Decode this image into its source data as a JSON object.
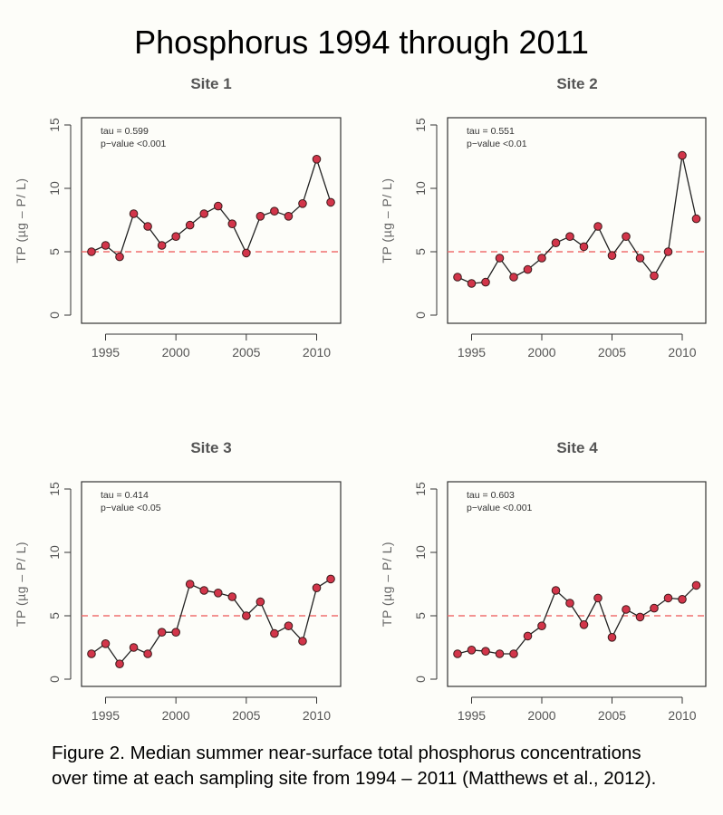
{
  "figure": {
    "title": "Phosphorus 1994 through 2011",
    "caption_line1": "Figure 2. Median summer near-surface total phosphorus concentrations",
    "caption_line2": "over time at each sampling site from 1994 – 2011 (Matthews et al., 2012)."
  },
  "colors": {
    "point_fill": "#d2354a",
    "point_stroke": "#3a1a1a",
    "line": "#222222",
    "reference_line": "#f07070",
    "axis": "#333333"
  },
  "chart_data": [
    {
      "type": "line",
      "title": "Site 1",
      "xlabel": "",
      "ylabel": "TP (µg – P/ L)",
      "xlim": [
        1994,
        2011
      ],
      "ylim": [
        0,
        15
      ],
      "xticks": [
        1995,
        2000,
        2005,
        2010
      ],
      "yticks": [
        0,
        5,
        10,
        15
      ],
      "reference_line": 5,
      "annotation": [
        "tau =  0.599",
        "p−value <0.001"
      ],
      "x": [
        1994,
        1995,
        1996,
        1997,
        1998,
        1999,
        2000,
        2001,
        2002,
        2003,
        2004,
        2005,
        2006,
        2007,
        2008,
        2009,
        2010,
        2011
      ],
      "values": [
        5.0,
        5.5,
        4.6,
        8.0,
        7.0,
        5.5,
        6.2,
        7.1,
        8.0,
        8.6,
        7.2,
        4.9,
        7.8,
        8.2,
        7.8,
        8.8,
        12.3,
        8.9
      ]
    },
    {
      "type": "line",
      "title": "Site 2",
      "xlabel": "",
      "ylabel": "TP (µg – P/ L)",
      "xlim": [
        1994,
        2011
      ],
      "ylim": [
        0,
        15
      ],
      "xticks": [
        1995,
        2000,
        2005,
        2010
      ],
      "yticks": [
        0,
        5,
        10,
        15
      ],
      "reference_line": 5,
      "annotation": [
        "tau =  0.551",
        "p−value <0.01"
      ],
      "x": [
        1994,
        1995,
        1996,
        1997,
        1998,
        1999,
        2000,
        2001,
        2002,
        2003,
        2004,
        2005,
        2006,
        2007,
        2008,
        2009,
        2010,
        2011
      ],
      "values": [
        3.0,
        2.5,
        2.6,
        4.5,
        3.0,
        3.6,
        4.5,
        5.7,
        6.2,
        5.4,
        7.0,
        4.7,
        6.2,
        4.5,
        3.1,
        5.0,
        12.6,
        7.6
      ]
    },
    {
      "type": "line",
      "title": "Site 3",
      "xlabel": "",
      "ylabel": "TP (µg – P/ L)",
      "xlim": [
        1994,
        2011
      ],
      "ylim": [
        0,
        15
      ],
      "xticks": [
        1995,
        2000,
        2005,
        2010
      ],
      "yticks": [
        0,
        5,
        10,
        15
      ],
      "reference_line": 5,
      "annotation": [
        "tau =  0.414",
        "p−value <0.05"
      ],
      "x": [
        1994,
        1995,
        1996,
        1997,
        1998,
        1999,
        2000,
        2001,
        2002,
        2003,
        2004,
        2005,
        2006,
        2007,
        2008,
        2009,
        2010,
        2011
      ],
      "values": [
        2.0,
        2.8,
        1.2,
        2.5,
        2.0,
        3.7,
        3.7,
        7.5,
        7.0,
        6.8,
        6.5,
        5.0,
        6.1,
        3.6,
        4.2,
        3.0,
        7.2,
        7.9
      ]
    },
    {
      "type": "line",
      "title": "Site 4",
      "xlabel": "",
      "ylabel": "TP (µg – P/ L)",
      "xlim": [
        1994,
        2011
      ],
      "ylim": [
        0,
        15
      ],
      "xticks": [
        1995,
        2000,
        2005,
        2010
      ],
      "yticks": [
        0,
        5,
        10,
        15
      ],
      "reference_line": 5,
      "annotation": [
        "tau =  0.603",
        "p−value <0.001"
      ],
      "x": [
        1994,
        1995,
        1996,
        1997,
        1998,
        1999,
        2000,
        2001,
        2002,
        2003,
        2004,
        2005,
        2006,
        2007,
        2008,
        2009,
        2010,
        2011
      ],
      "values": [
        2.0,
        2.3,
        2.2,
        2.0,
        2.0,
        3.4,
        4.2,
        7.0,
        6.0,
        4.3,
        6.4,
        3.3,
        5.5,
        4.9,
        5.6,
        6.4,
        6.3,
        7.4
      ]
    }
  ]
}
